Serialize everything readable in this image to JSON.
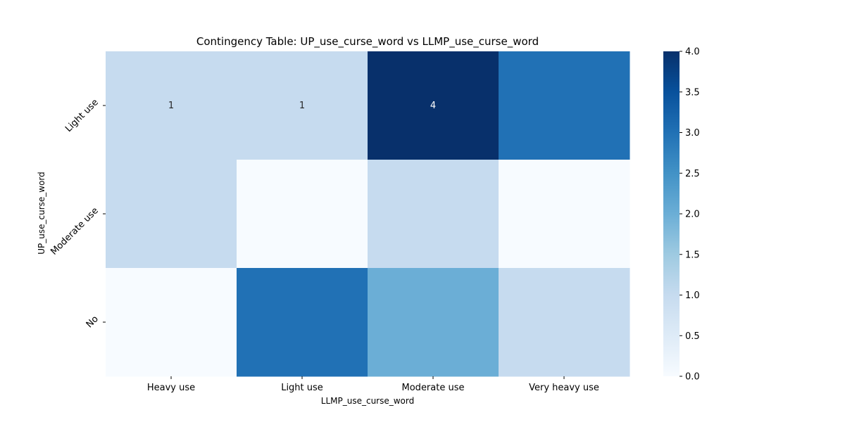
{
  "chart_data": {
    "type": "heatmap",
    "title": "Contingency Table: UP_use_curse_word vs LLMP_use_curse_word",
    "xlabel": "LLMP_use_curse_word",
    "ylabel": "UP_use_curse_word",
    "x_categories": [
      "Heavy use",
      "Light use",
      "Moderate use",
      "Very heavy use"
    ],
    "y_categories": [
      "Light use",
      "Moderate use",
      "No"
    ],
    "values": [
      [
        1,
        1,
        4,
        3
      ],
      [
        1,
        0,
        1,
        0
      ],
      [
        0,
        3,
        2,
        1
      ]
    ],
    "visible_annotations": [
      [
        "1",
        "1",
        "4",
        ""
      ],
      [
        "",
        "",
        "",
        ""
      ],
      [
        "",
        "",
        "",
        ""
      ]
    ],
    "vmin": 0,
    "vmax": 4,
    "colormap": "Blues",
    "colorbar_ticks": [
      "0.0",
      "0.5",
      "1.0",
      "1.5",
      "2.0",
      "2.5",
      "3.0",
      "3.5",
      "4.0"
    ]
  }
}
